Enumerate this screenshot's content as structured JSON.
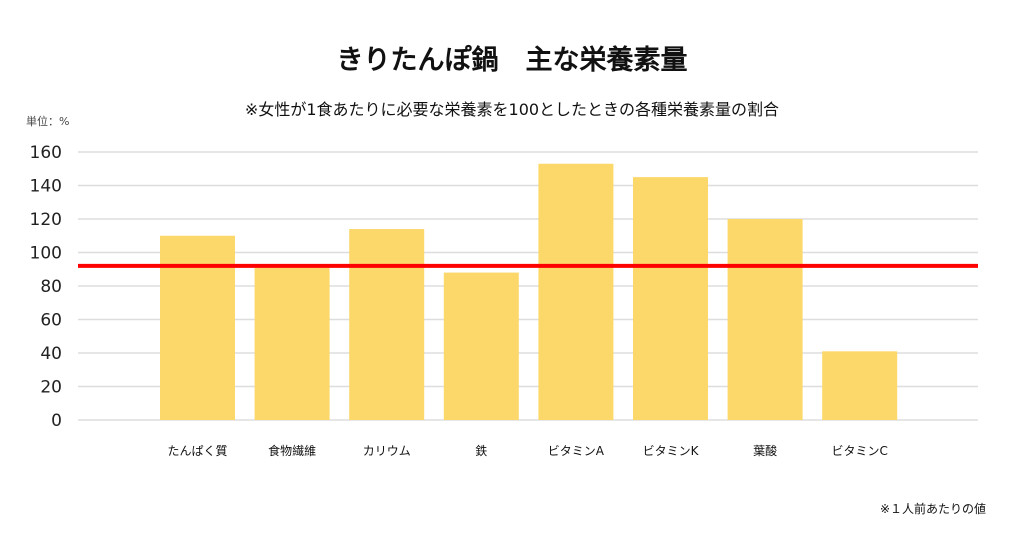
{
  "chart_data": {
    "type": "bar",
    "title": "きりたんぽ鍋　主な栄養素量",
    "subtitle": "※女性が1食あたりに必要な栄養素を100としたときの各種栄養素量の割合",
    "ylabel": "単位：%",
    "footnote": "※１人前あたりの値",
    "categories": [
      "たんぱく質",
      "食物繊維",
      "カリウム",
      "鉄",
      "ビタミンA",
      "ビタミンK",
      "葉酸",
      "ビタミンC"
    ],
    "values": [
      110,
      91,
      114,
      88,
      153,
      145,
      120,
      41
    ],
    "yticks": [
      0,
      20,
      40,
      60,
      80,
      100,
      120,
      140,
      160
    ],
    "ylim": [
      0,
      160
    ],
    "reference_line": 92,
    "grid": true,
    "colors": {
      "bar": "#FCD86A",
      "reference": "#FF0000",
      "grid": "#DDDDDD"
    }
  }
}
